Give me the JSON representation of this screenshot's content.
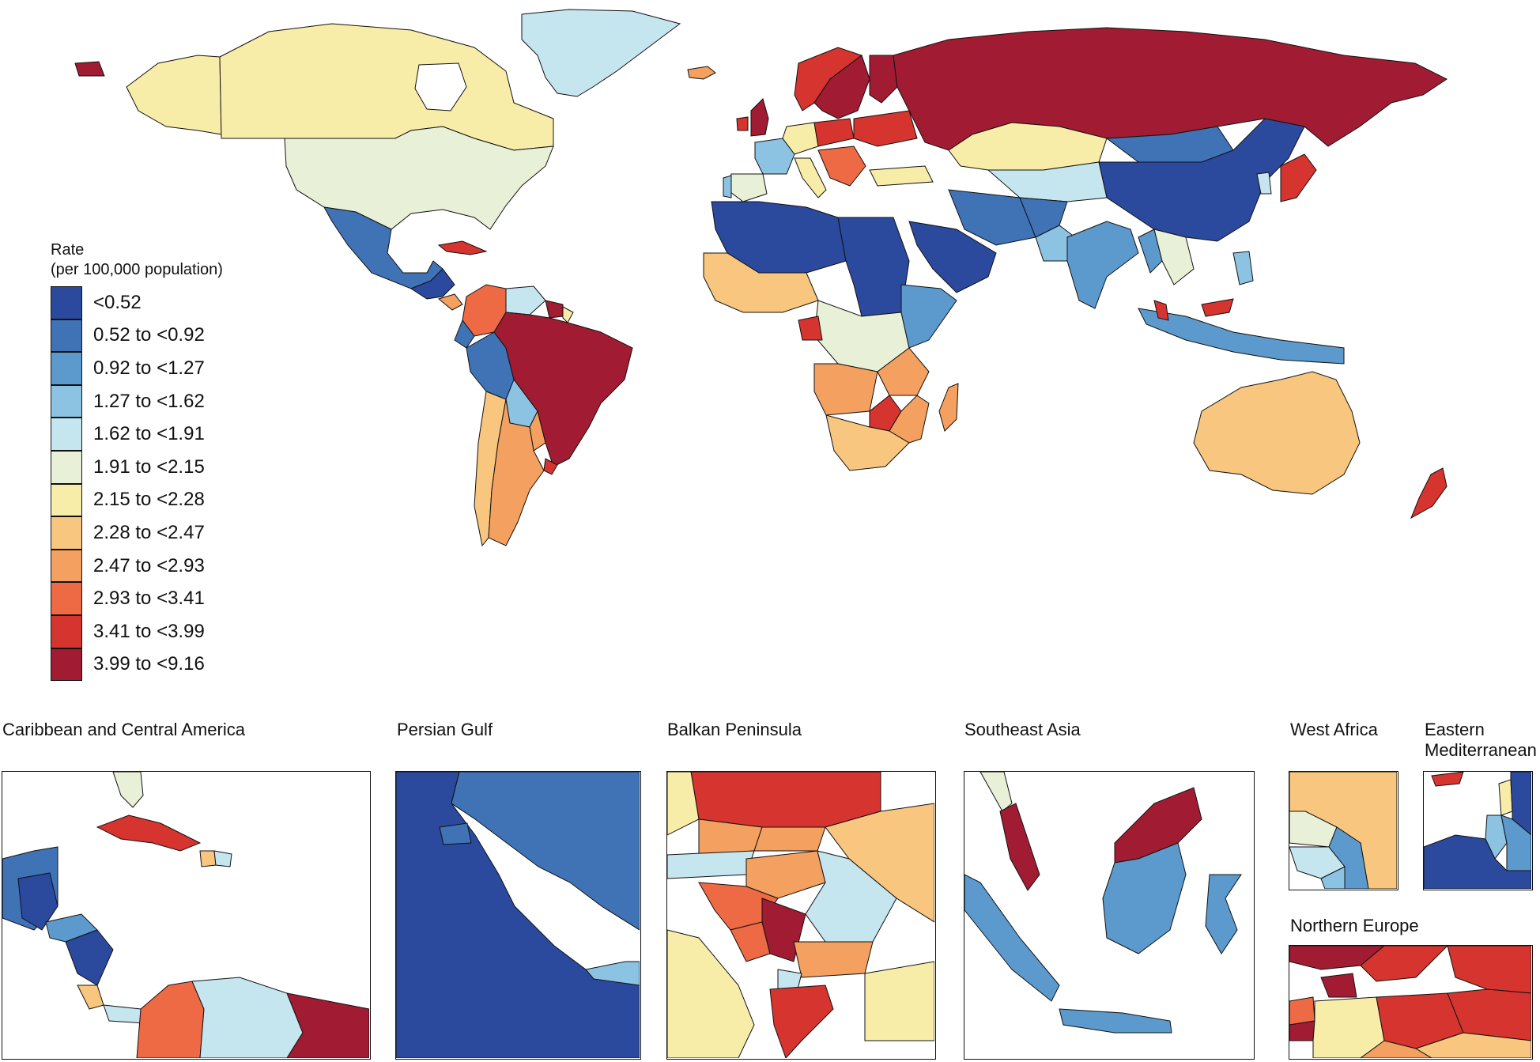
{
  "colors": {
    "c1": "#2B4A9E",
    "c2": "#3F73B6",
    "c3": "#5C9ACD",
    "c4": "#8CC3E3",
    "c5": "#C5E5EF",
    "c6": "#E8F1D7",
    "c7": "#F8EDA8",
    "c8": "#F8C67E",
    "c9": "#F4A060",
    "c10": "#EE6A45",
    "c11": "#D6342E",
    "c12": "#A11C32"
  },
  "legend": {
    "title_line1": "Rate",
    "title_line2": "(per 100,000 population)",
    "items": [
      {
        "label": "<0.52",
        "color": "#2B4A9E"
      },
      {
        "label": "0.52 to <0.92",
        "color": "#3F73B6"
      },
      {
        "label": "0.92 to <1.27",
        "color": "#5C9ACD"
      },
      {
        "label": "1.27 to <1.62",
        "color": "#8CC3E3"
      },
      {
        "label": "1.62 to <1.91",
        "color": "#C5E5EF"
      },
      {
        "label": "1.91 to <2.15",
        "color": "#E8F1D7"
      },
      {
        "label": "2.15 to <2.28",
        "color": "#F8EDA8"
      },
      {
        "label": "2.28 to <2.47",
        "color": "#F8C67E"
      },
      {
        "label": "2.47 to <2.93",
        "color": "#F4A060"
      },
      {
        "label": "2.93 to <3.41",
        "color": "#EE6A45"
      },
      {
        "label": "3.41 to <3.99",
        "color": "#D6342E"
      },
      {
        "label": "3.99 to <9.16",
        "color": "#A11C32"
      }
    ]
  },
  "insets": {
    "caribbean": "Caribbean and Central America",
    "persian_gulf": "Persian Gulf",
    "balkan": "Balkan Peninsula",
    "southeast_asia": "Southeast Asia",
    "west_africa": "West Africa",
    "east_med_line1": "Eastern",
    "east_med_line2": "Mediterranean",
    "northern_europe": "Northern Europe"
  }
}
